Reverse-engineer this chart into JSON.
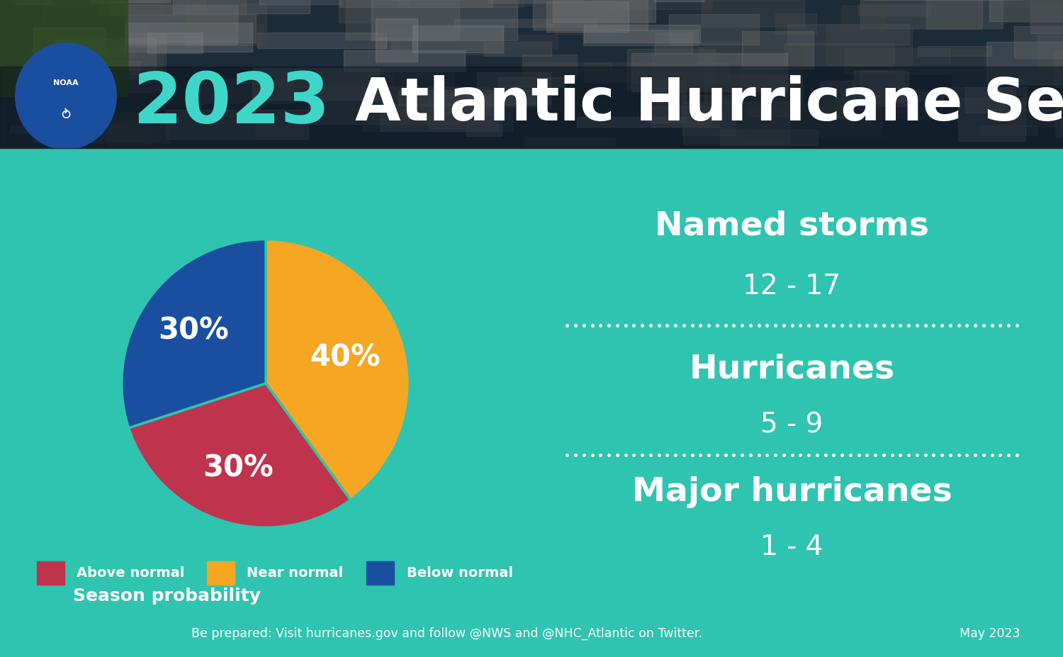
{
  "title_year": "2023",
  "title_rest": " Atlantic Hurricane Season Outlook",
  "title_year_color": "#3dd6c8",
  "title_rest_color": "#ffffff",
  "header_bg_color": "#2a3540",
  "main_bg_color": "#2ec4b0",
  "footer_bg_color": "#1e3045",
  "footer_text": "Be prepared: Visit hurricanes.gov and follow @NWS and @NHC_Atlantic on Twitter.",
  "footer_date": "May 2023",
  "footer_text_color": "#ffffff",
  "pie_values": [
    40,
    30,
    30
  ],
  "pie_colors": [
    "#f5a623",
    "#c0334d",
    "#1a4fa0"
  ],
  "pie_order_labels": [
    "40%",
    "30%",
    "30%"
  ],
  "legend_colors": [
    "#c0334d",
    "#f5a623",
    "#1a4fa0"
  ],
  "legend_labels": [
    "Above normal",
    "Near normal",
    "Below normal"
  ],
  "season_prob_label": "Season probability",
  "divider_color": "#2a6a7a",
  "named_storms_label": "Named storms",
  "named_storms_range": "12 - 17",
  "hurricanes_label": "Hurricanes",
  "hurricanes_range": "5 - 9",
  "major_hurricanes_label": "Major hurricanes",
  "major_hurricanes_range": "1 - 4"
}
